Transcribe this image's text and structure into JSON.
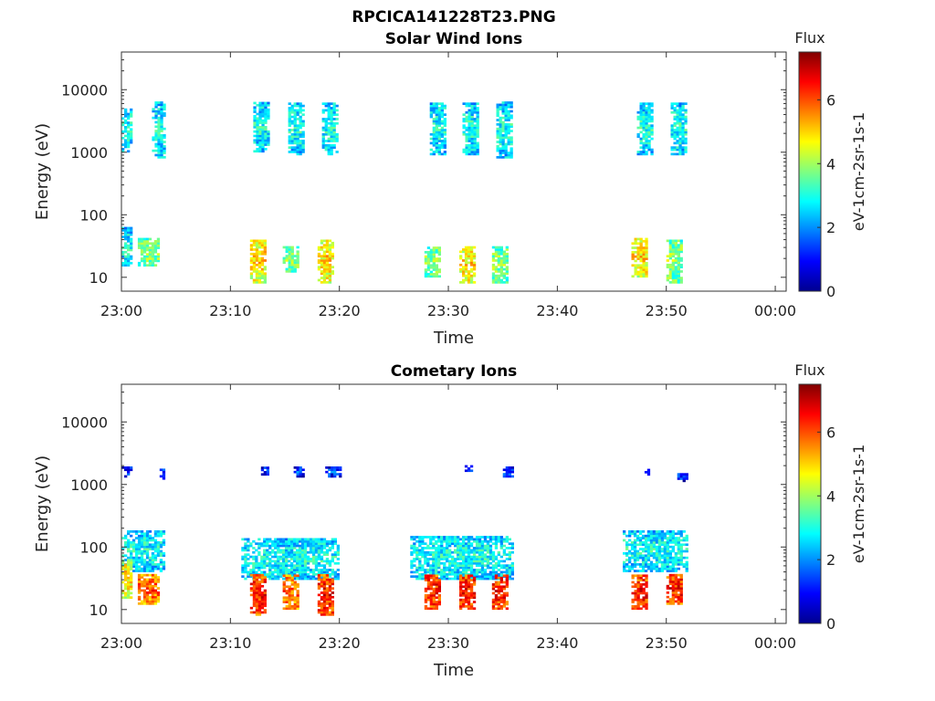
{
  "figure": {
    "title": "RPCICA141228T23.PNG"
  },
  "colors": {
    "background": "#ffffff",
    "axis": "#333333",
    "colormap": "jet"
  },
  "chart_data": [
    {
      "type": "heatmap",
      "title": "Solar Wind Ions",
      "xlabel": "Time",
      "ylabel": "Energy (eV)",
      "x_ticks": [
        "23:00",
        "23:10",
        "23:20",
        "23:30",
        "23:40",
        "23:50",
        "00:00"
      ],
      "x_range_minutes": [
        0,
        61
      ],
      "y_scale": "log",
      "y_ticks": [
        "10",
        "100",
        "1000",
        "10000"
      ],
      "y_range": [
        6,
        40000
      ],
      "colorbar": {
        "label": "Flux",
        "unit": "eV-1cm-2sr-1s-1",
        "range": [
          0,
          7.5
        ],
        "ticks": [
          "0",
          "2",
          "4",
          "6"
        ]
      },
      "grid": false,
      "clusters": [
        {
          "t_start": 0.0,
          "t_end": 0.8,
          "e_low": 1000,
          "e_high": 5000,
          "level": 3
        },
        {
          "t_start": 0.0,
          "t_end": 0.8,
          "e_low": 15,
          "e_high": 60,
          "level": 3
        },
        {
          "t_start": 2.8,
          "t_end": 4.0,
          "e_low": 800,
          "e_high": 6000,
          "level": 3
        },
        {
          "t_start": 1.5,
          "t_end": 3.5,
          "e_low": 15,
          "e_high": 40,
          "level": 4
        },
        {
          "t_start": 12.1,
          "t_end": 13.5,
          "e_low": 1000,
          "e_high": 6000,
          "level": 3
        },
        {
          "t_start": 11.8,
          "t_end": 13.2,
          "e_low": 8,
          "e_high": 40,
          "level": 5
        },
        {
          "t_start": 15.3,
          "t_end": 16.7,
          "e_low": 900,
          "e_high": 6000,
          "level": 3
        },
        {
          "t_start": 14.8,
          "t_end": 16.2,
          "e_low": 12,
          "e_high": 30,
          "level": 4
        },
        {
          "t_start": 18.4,
          "t_end": 19.8,
          "e_low": 900,
          "e_high": 6000,
          "level": 3
        },
        {
          "t_start": 18.0,
          "t_end": 19.3,
          "e_low": 8,
          "e_high": 40,
          "level": 5
        },
        {
          "t_start": 28.3,
          "t_end": 29.7,
          "e_low": 900,
          "e_high": 6000,
          "level": 3
        },
        {
          "t_start": 27.8,
          "t_end": 29.3,
          "e_low": 10,
          "e_high": 30,
          "level": 4
        },
        {
          "t_start": 31.3,
          "t_end": 32.8,
          "e_low": 900,
          "e_high": 6000,
          "level": 3
        },
        {
          "t_start": 31.0,
          "t_end": 32.3,
          "e_low": 8,
          "e_high": 30,
          "level": 5
        },
        {
          "t_start": 34.4,
          "t_end": 35.8,
          "e_low": 800,
          "e_high": 6000,
          "level": 3
        },
        {
          "t_start": 34.0,
          "t_end": 35.3,
          "e_low": 8,
          "e_high": 30,
          "level": 4
        },
        {
          "t_start": 47.3,
          "t_end": 48.8,
          "e_low": 900,
          "e_high": 6000,
          "level": 3
        },
        {
          "t_start": 46.8,
          "t_end": 48.3,
          "e_low": 10,
          "e_high": 40,
          "level": 5
        },
        {
          "t_start": 50.4,
          "t_end": 51.8,
          "e_low": 900,
          "e_high": 6000,
          "level": 3
        },
        {
          "t_start": 50.0,
          "t_end": 51.5,
          "e_low": 8,
          "e_high": 40,
          "level": 4
        }
      ]
    },
    {
      "type": "heatmap",
      "title": "Cometary Ions",
      "xlabel": "Time",
      "ylabel": "Energy (eV)",
      "x_ticks": [
        "23:00",
        "23:10",
        "23:20",
        "23:30",
        "23:40",
        "23:50",
        "00:00"
      ],
      "x_range_minutes": [
        0,
        61
      ],
      "y_scale": "log",
      "y_ticks": [
        "10",
        "100",
        "1000",
        "10000"
      ],
      "y_range": [
        6,
        40000
      ],
      "colorbar": {
        "label": "Flux",
        "unit": "eV-1cm-2sr-1s-1",
        "range": [
          0,
          7.5
        ],
        "ticks": [
          "0",
          "2",
          "4",
          "6"
        ]
      },
      "grid": false,
      "clusters": [
        {
          "t_start": 0.0,
          "t_end": 4.0,
          "e_low": 40,
          "e_high": 180,
          "level": 3
        },
        {
          "t_start": 0.0,
          "t_end": 1.0,
          "e_low": 15,
          "e_high": 60,
          "level": 5
        },
        {
          "t_start": 1.5,
          "t_end": 3.5,
          "e_low": 12,
          "e_high": 35,
          "level": 6
        },
        {
          "t_start": 0.0,
          "t_end": 0.8,
          "e_low": 1300,
          "e_high": 1800,
          "level": 1.5
        },
        {
          "t_start": 3.5,
          "t_end": 4.0,
          "e_low": 1200,
          "e_high": 1700,
          "level": 1.5
        },
        {
          "t_start": 11.0,
          "t_end": 19.8,
          "e_low": 30,
          "e_high": 130,
          "level": 3
        },
        {
          "t_start": 11.8,
          "t_end": 13.2,
          "e_low": 8,
          "e_high": 35,
          "level": 6.5
        },
        {
          "t_start": 14.8,
          "t_end": 16.2,
          "e_low": 10,
          "e_high": 35,
          "level": 6
        },
        {
          "t_start": 18.0,
          "t_end": 19.3,
          "e_low": 8,
          "e_high": 35,
          "level": 6.5
        },
        {
          "t_start": 12.8,
          "t_end": 13.5,
          "e_low": 1400,
          "e_high": 1800,
          "level": 1.5
        },
        {
          "t_start": 15.8,
          "t_end": 16.8,
          "e_low": 1300,
          "e_high": 1800,
          "level": 1.5
        },
        {
          "t_start": 18.7,
          "t_end": 20.0,
          "e_low": 1300,
          "e_high": 1800,
          "level": 1.5
        },
        {
          "t_start": 26.5,
          "t_end": 35.8,
          "e_low": 30,
          "e_high": 150,
          "level": 3
        },
        {
          "t_start": 27.8,
          "t_end": 29.3,
          "e_low": 10,
          "e_high": 35,
          "level": 6.5
        },
        {
          "t_start": 31.0,
          "t_end": 32.3,
          "e_low": 10,
          "e_high": 35,
          "level": 6.5
        },
        {
          "t_start": 34.0,
          "t_end": 35.3,
          "e_low": 10,
          "e_high": 35,
          "level": 6.5
        },
        {
          "t_start": 31.5,
          "t_end": 32.5,
          "e_low": 1600,
          "e_high": 2000,
          "level": 1.5
        },
        {
          "t_start": 35.0,
          "t_end": 35.8,
          "e_low": 1300,
          "e_high": 1800,
          "level": 1.5
        },
        {
          "t_start": 46.0,
          "t_end": 52.0,
          "e_low": 40,
          "e_high": 180,
          "level": 3
        },
        {
          "t_start": 46.8,
          "t_end": 48.3,
          "e_low": 10,
          "e_high": 35,
          "level": 6.5
        },
        {
          "t_start": 50.0,
          "t_end": 51.5,
          "e_low": 12,
          "e_high": 35,
          "level": 6.5
        },
        {
          "t_start": 48.0,
          "t_end": 48.5,
          "e_low": 1400,
          "e_high": 1700,
          "level": 1.5
        },
        {
          "t_start": 51.0,
          "t_end": 52.0,
          "e_low": 1100,
          "e_high": 1500,
          "level": 1.5
        }
      ]
    }
  ]
}
